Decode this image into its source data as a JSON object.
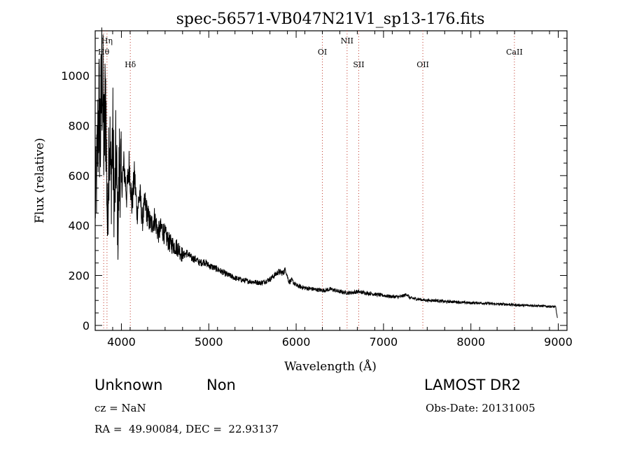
{
  "chart_data": {
    "type": "line",
    "title": "spec-56571-VB047N21V1_sp13-176.fits",
    "xlabel": "Wavelength (Å)",
    "ylabel": "Flux (relative)",
    "xlim": [
      3700,
      9100
    ],
    "ylim": [
      -20,
      1180
    ],
    "x_ticks": [
      4000,
      5000,
      6000,
      7000,
      8000,
      9000
    ],
    "y_ticks": [
      0,
      200,
      400,
      600,
      800,
      1000
    ],
    "series": [
      {
        "name": "flux",
        "x": [
          3700,
          3720,
          3740,
          3760,
          3780,
          3800,
          3820,
          3840,
          3860,
          3880,
          3900,
          3920,
          3940,
          3960,
          3980,
          4000,
          4030,
          4060,
          4090,
          4120,
          4150,
          4180,
          4210,
          4240,
          4270,
          4300,
          4340,
          4380,
          4420,
          4460,
          4500,
          4550,
          4600,
          4650,
          4700,
          4750,
          4800,
          4850,
          4900,
          4950,
          5000,
          5100,
          5200,
          5300,
          5400,
          5500,
          5600,
          5700,
          5750,
          5800,
          5850,
          5880,
          5900,
          5920,
          5950,
          6000,
          6100,
          6200,
          6300,
          6400,
          6500,
          6600,
          6700,
          6800,
          6900,
          7000,
          7100,
          7200,
          7270,
          7300,
          7400,
          7500,
          7600,
          7700,
          7800,
          7900,
          8000,
          8100,
          8200,
          8300,
          8400,
          8500,
          8600,
          8700,
          8800,
          8900,
          8970,
          8990
        ],
        "y": [
          480,
          620,
          880,
          750,
          1050,
          700,
          930,
          380,
          820,
          560,
          760,
          460,
          700,
          370,
          690,
          560,
          640,
          520,
          650,
          480,
          600,
          450,
          530,
          420,
          490,
          440,
          400,
          430,
          370,
          390,
          360,
          330,
          320,
          310,
          280,
          290,
          270,
          265,
          250,
          255,
          240,
          225,
          205,
          190,
          180,
          175,
          170,
          185,
          200,
          215,
          210,
          225,
          195,
          175,
          180,
          160,
          150,
          145,
          140,
          145,
          135,
          130,
          135,
          130,
          125,
          120,
          115,
          115,
          125,
          110,
          105,
          100,
          100,
          95,
          95,
          92,
          90,
          90,
          88,
          85,
          85,
          82,
          80,
          80,
          78,
          76,
          74,
          30
        ]
      }
    ],
    "lines": [
      {
        "label": "Hη",
        "x": 3835,
        "row": 0
      },
      {
        "label": "Hθ",
        "x": 3797,
        "row": 1
      },
      {
        "label": "Hδ",
        "x": 4102,
        "row": 2
      },
      {
        "label": "OI",
        "x": 6300,
        "row": 1
      },
      {
        "label": "NII",
        "x": 6583,
        "row": 0
      },
      {
        "label": "SII",
        "x": 6716,
        "row": 2
      },
      {
        "label": "OII",
        "x": 7450,
        "row": 2
      },
      {
        "label": "CaII",
        "x": 8498,
        "row": 1
      }
    ],
    "line_color": "#c0392b"
  },
  "info": {
    "class_type": "Unknown",
    "subclass": "Non",
    "survey": "LAMOST DR2",
    "cz": "cz = NaN",
    "obs_date": "Obs-Date: 20131005",
    "radec": "RA =  49.90084, DEC =  22.93137"
  }
}
